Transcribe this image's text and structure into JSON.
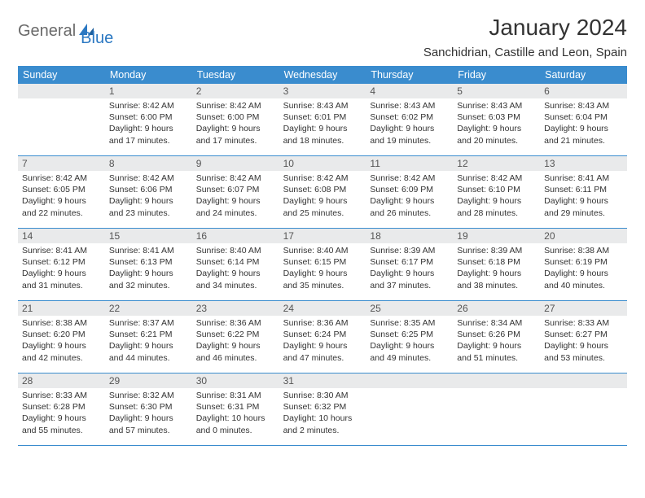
{
  "logo": {
    "part1": "General",
    "part2": "Blue"
  },
  "title": "January 2024",
  "subtitle": "Sanchidrian, Castille and Leon, Spain",
  "colors": {
    "header_bg": "#3a8cce",
    "header_text": "#ffffff",
    "daynum_bg": "#e9eaeb",
    "week_border": "#3a8cce",
    "logo_blue": "#2b78c2",
    "logo_gray": "#6a6a6a"
  },
  "dayNames": [
    "Sunday",
    "Monday",
    "Tuesday",
    "Wednesday",
    "Thursday",
    "Friday",
    "Saturday"
  ],
  "weeks": [
    [
      {
        "day": "",
        "sunrise": "",
        "sunset": "",
        "daylight1": "",
        "daylight2": ""
      },
      {
        "day": "1",
        "sunrise": "Sunrise: 8:42 AM",
        "sunset": "Sunset: 6:00 PM",
        "daylight1": "Daylight: 9 hours",
        "daylight2": "and 17 minutes."
      },
      {
        "day": "2",
        "sunrise": "Sunrise: 8:42 AM",
        "sunset": "Sunset: 6:00 PM",
        "daylight1": "Daylight: 9 hours",
        "daylight2": "and 17 minutes."
      },
      {
        "day": "3",
        "sunrise": "Sunrise: 8:43 AM",
        "sunset": "Sunset: 6:01 PM",
        "daylight1": "Daylight: 9 hours",
        "daylight2": "and 18 minutes."
      },
      {
        "day": "4",
        "sunrise": "Sunrise: 8:43 AM",
        "sunset": "Sunset: 6:02 PM",
        "daylight1": "Daylight: 9 hours",
        "daylight2": "and 19 minutes."
      },
      {
        "day": "5",
        "sunrise": "Sunrise: 8:43 AM",
        "sunset": "Sunset: 6:03 PM",
        "daylight1": "Daylight: 9 hours",
        "daylight2": "and 20 minutes."
      },
      {
        "day": "6",
        "sunrise": "Sunrise: 8:43 AM",
        "sunset": "Sunset: 6:04 PM",
        "daylight1": "Daylight: 9 hours",
        "daylight2": "and 21 minutes."
      }
    ],
    [
      {
        "day": "7",
        "sunrise": "Sunrise: 8:42 AM",
        "sunset": "Sunset: 6:05 PM",
        "daylight1": "Daylight: 9 hours",
        "daylight2": "and 22 minutes."
      },
      {
        "day": "8",
        "sunrise": "Sunrise: 8:42 AM",
        "sunset": "Sunset: 6:06 PM",
        "daylight1": "Daylight: 9 hours",
        "daylight2": "and 23 minutes."
      },
      {
        "day": "9",
        "sunrise": "Sunrise: 8:42 AM",
        "sunset": "Sunset: 6:07 PM",
        "daylight1": "Daylight: 9 hours",
        "daylight2": "and 24 minutes."
      },
      {
        "day": "10",
        "sunrise": "Sunrise: 8:42 AM",
        "sunset": "Sunset: 6:08 PM",
        "daylight1": "Daylight: 9 hours",
        "daylight2": "and 25 minutes."
      },
      {
        "day": "11",
        "sunrise": "Sunrise: 8:42 AM",
        "sunset": "Sunset: 6:09 PM",
        "daylight1": "Daylight: 9 hours",
        "daylight2": "and 26 minutes."
      },
      {
        "day": "12",
        "sunrise": "Sunrise: 8:42 AM",
        "sunset": "Sunset: 6:10 PM",
        "daylight1": "Daylight: 9 hours",
        "daylight2": "and 28 minutes."
      },
      {
        "day": "13",
        "sunrise": "Sunrise: 8:41 AM",
        "sunset": "Sunset: 6:11 PM",
        "daylight1": "Daylight: 9 hours",
        "daylight2": "and 29 minutes."
      }
    ],
    [
      {
        "day": "14",
        "sunrise": "Sunrise: 8:41 AM",
        "sunset": "Sunset: 6:12 PM",
        "daylight1": "Daylight: 9 hours",
        "daylight2": "and 31 minutes."
      },
      {
        "day": "15",
        "sunrise": "Sunrise: 8:41 AM",
        "sunset": "Sunset: 6:13 PM",
        "daylight1": "Daylight: 9 hours",
        "daylight2": "and 32 minutes."
      },
      {
        "day": "16",
        "sunrise": "Sunrise: 8:40 AM",
        "sunset": "Sunset: 6:14 PM",
        "daylight1": "Daylight: 9 hours",
        "daylight2": "and 34 minutes."
      },
      {
        "day": "17",
        "sunrise": "Sunrise: 8:40 AM",
        "sunset": "Sunset: 6:15 PM",
        "daylight1": "Daylight: 9 hours",
        "daylight2": "and 35 minutes."
      },
      {
        "day": "18",
        "sunrise": "Sunrise: 8:39 AM",
        "sunset": "Sunset: 6:17 PM",
        "daylight1": "Daylight: 9 hours",
        "daylight2": "and 37 minutes."
      },
      {
        "day": "19",
        "sunrise": "Sunrise: 8:39 AM",
        "sunset": "Sunset: 6:18 PM",
        "daylight1": "Daylight: 9 hours",
        "daylight2": "and 38 minutes."
      },
      {
        "day": "20",
        "sunrise": "Sunrise: 8:38 AM",
        "sunset": "Sunset: 6:19 PM",
        "daylight1": "Daylight: 9 hours",
        "daylight2": "and 40 minutes."
      }
    ],
    [
      {
        "day": "21",
        "sunrise": "Sunrise: 8:38 AM",
        "sunset": "Sunset: 6:20 PM",
        "daylight1": "Daylight: 9 hours",
        "daylight2": "and 42 minutes."
      },
      {
        "day": "22",
        "sunrise": "Sunrise: 8:37 AM",
        "sunset": "Sunset: 6:21 PM",
        "daylight1": "Daylight: 9 hours",
        "daylight2": "and 44 minutes."
      },
      {
        "day": "23",
        "sunrise": "Sunrise: 8:36 AM",
        "sunset": "Sunset: 6:22 PM",
        "daylight1": "Daylight: 9 hours",
        "daylight2": "and 46 minutes."
      },
      {
        "day": "24",
        "sunrise": "Sunrise: 8:36 AM",
        "sunset": "Sunset: 6:24 PM",
        "daylight1": "Daylight: 9 hours",
        "daylight2": "and 47 minutes."
      },
      {
        "day": "25",
        "sunrise": "Sunrise: 8:35 AM",
        "sunset": "Sunset: 6:25 PM",
        "daylight1": "Daylight: 9 hours",
        "daylight2": "and 49 minutes."
      },
      {
        "day": "26",
        "sunrise": "Sunrise: 8:34 AM",
        "sunset": "Sunset: 6:26 PM",
        "daylight1": "Daylight: 9 hours",
        "daylight2": "and 51 minutes."
      },
      {
        "day": "27",
        "sunrise": "Sunrise: 8:33 AM",
        "sunset": "Sunset: 6:27 PM",
        "daylight1": "Daylight: 9 hours",
        "daylight2": "and 53 minutes."
      }
    ],
    [
      {
        "day": "28",
        "sunrise": "Sunrise: 8:33 AM",
        "sunset": "Sunset: 6:28 PM",
        "daylight1": "Daylight: 9 hours",
        "daylight2": "and 55 minutes."
      },
      {
        "day": "29",
        "sunrise": "Sunrise: 8:32 AM",
        "sunset": "Sunset: 6:30 PM",
        "daylight1": "Daylight: 9 hours",
        "daylight2": "and 57 minutes."
      },
      {
        "day": "30",
        "sunrise": "Sunrise: 8:31 AM",
        "sunset": "Sunset: 6:31 PM",
        "daylight1": "Daylight: 10 hours",
        "daylight2": "and 0 minutes."
      },
      {
        "day": "31",
        "sunrise": "Sunrise: 8:30 AM",
        "sunset": "Sunset: 6:32 PM",
        "daylight1": "Daylight: 10 hours",
        "daylight2": "and 2 minutes."
      },
      {
        "day": "",
        "sunrise": "",
        "sunset": "",
        "daylight1": "",
        "daylight2": ""
      },
      {
        "day": "",
        "sunrise": "",
        "sunset": "",
        "daylight1": "",
        "daylight2": ""
      },
      {
        "day": "",
        "sunrise": "",
        "sunset": "",
        "daylight1": "",
        "daylight2": ""
      }
    ]
  ]
}
